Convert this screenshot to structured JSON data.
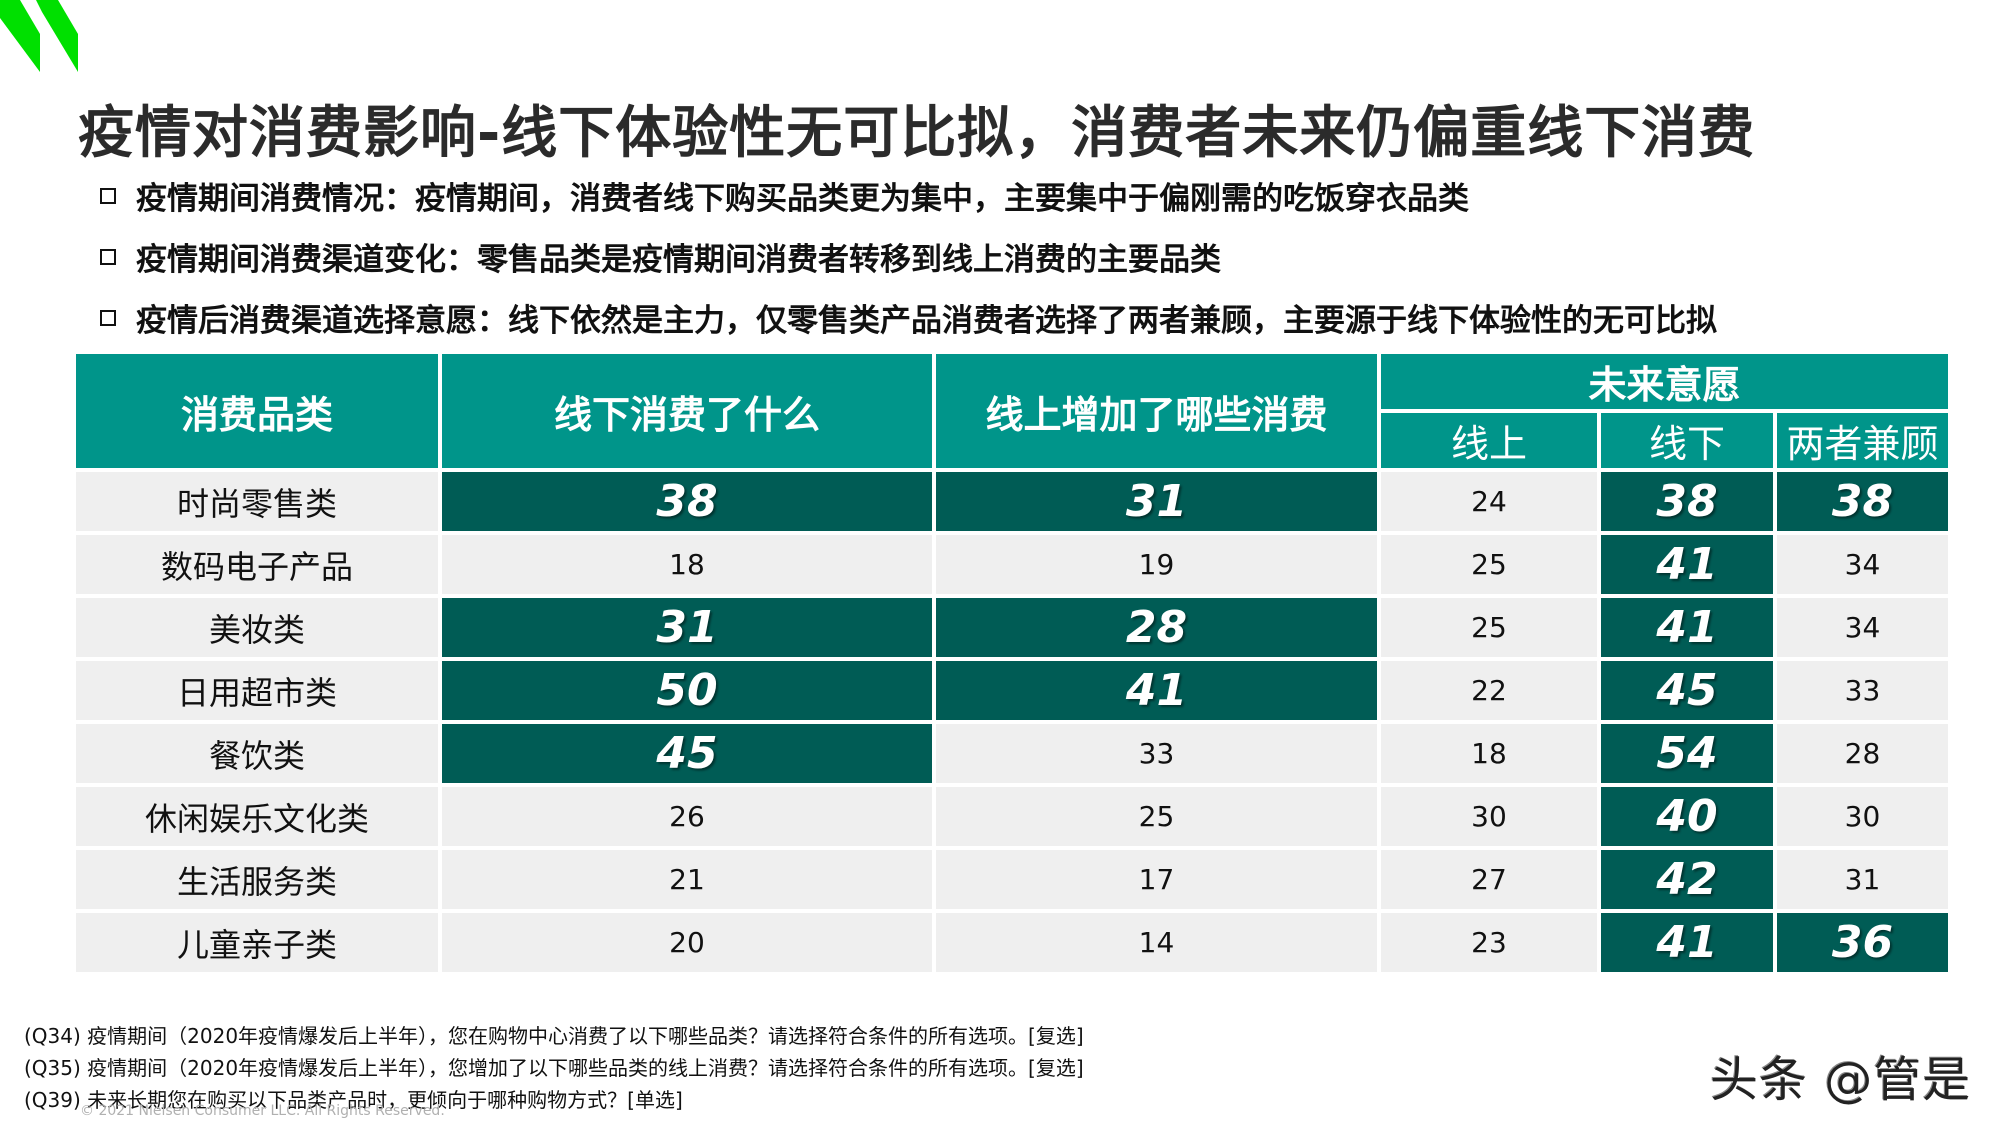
{
  "brand": {
    "logo_icon": "nielsen-green-parallelograms-logo",
    "accent": "#00e000"
  },
  "title": "疫情对消费影响-线下体验性无可比拟，消费者未来仍偏重线下消费",
  "bullets": [
    "疫情期间消费情况：疫情期间，消费者线下购买品类更为集中，主要集中于偏刚需的吃饭穿衣品类",
    "疫情期间消费渠道变化：零售品类是疫情期间消费者转移到线上消费的主要品类",
    "疫情后消费渠道选择意愿：线下依然是主力，仅零售类产品消费者选择了两者兼顾，主要源于线下体验性的无可比拟"
  ],
  "colors": {
    "header_bg": "#00958a",
    "highlight_bg": "#005c55",
    "cell_bg": "#efefef"
  },
  "table": {
    "headers": {
      "category": "消费品类",
      "offline_spent": "线下消费了什么",
      "online_added": "线上增加了哪些消费",
      "future_group": "未来意愿",
      "future_online": "线上",
      "future_offline": "线下",
      "future_both": "两者兼顾"
    },
    "rows": [
      {
        "category": "时尚零售类",
        "offline_spent": "38",
        "online_added": "31",
        "future_online": "24",
        "future_offline": "38",
        "future_both": "38"
      },
      {
        "category": "数码电子产品",
        "offline_spent": "18",
        "online_added": "19",
        "future_online": "25",
        "future_offline": "41",
        "future_both": "34"
      },
      {
        "category": "美妆类",
        "offline_spent": "31",
        "online_added": "28",
        "future_online": "25",
        "future_offline": "41",
        "future_both": "34"
      },
      {
        "category": "日用超市类",
        "offline_spent": "50",
        "online_added": "41",
        "future_online": "22",
        "future_offline": "45",
        "future_both": "33"
      },
      {
        "category": "餐饮类",
        "offline_spent": "45",
        "online_added": "33",
        "future_online": "18",
        "future_offline": "54",
        "future_both": "28"
      },
      {
        "category": "休闲娱乐文化类",
        "offline_spent": "26",
        "online_added": "25",
        "future_online": "30",
        "future_offline": "40",
        "future_both": "30"
      },
      {
        "category": "生活服务类",
        "offline_spent": "21",
        "online_added": "17",
        "future_online": "27",
        "future_offline": "42",
        "future_both": "31"
      },
      {
        "category": "儿童亲子类",
        "offline_spent": "20",
        "online_added": "14",
        "future_online": "23",
        "future_offline": "41",
        "future_both": "36"
      }
    ],
    "highlighted": [
      [
        "offline_spent",
        "online_added",
        "future_offline",
        "future_both"
      ],
      [
        "future_offline"
      ],
      [
        "offline_spent",
        "online_added",
        "future_offline"
      ],
      [
        "offline_spent",
        "online_added",
        "future_offline"
      ],
      [
        "offline_spent",
        "future_offline"
      ],
      [
        "future_offline"
      ],
      [
        "future_offline"
      ],
      [
        "future_offline",
        "future_both"
      ]
    ]
  },
  "footnotes": [
    "(Q34) 疫情期间（2020年疫情爆发后上半年），您在购物中心消费了以下哪些品类？请选择符合条件的所有选项。[复选]",
    "(Q35) 疫情期间（2020年疫情爆发后上半年），您增加了以下哪些品类的线上消费？请选择符合条件的所有选项。[复选]",
    "(Q39) 未来长期您在购买以下品类产品时，更倾向于哪种购物方式？[单选]"
  ],
  "copyright": "© 2021 Nielsen Consumer LLC. All Rights Reserved.",
  "watermark": "头条 @管是"
}
